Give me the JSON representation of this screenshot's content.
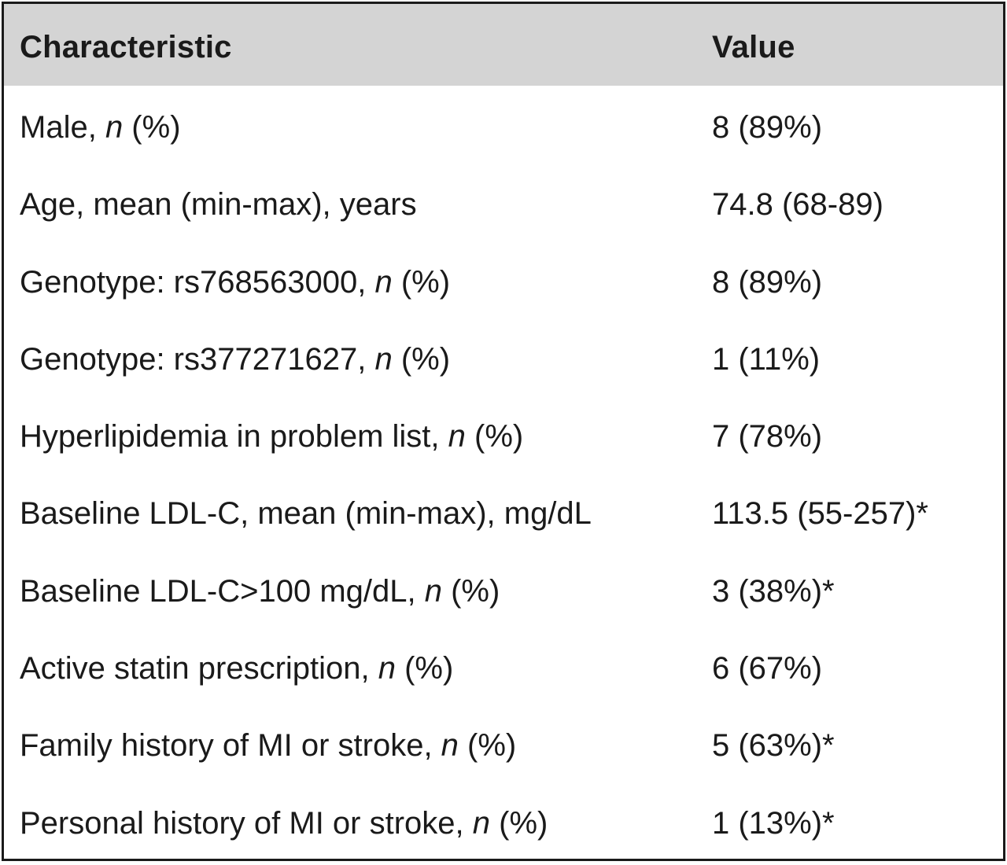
{
  "table": {
    "headers": {
      "characteristic": "Characteristic",
      "value": "Value"
    },
    "rows": [
      {
        "label_pre": "Male, ",
        "label_italic": "n",
        "label_post": " (%)",
        "value": "8 (89%)"
      },
      {
        "label_pre": "Age, mean (min-max), years",
        "label_italic": "",
        "label_post": "",
        "value": "74.8 (68-89)"
      },
      {
        "label_pre": "Genotype: rs768563000, ",
        "label_italic": "n",
        "label_post": " (%)",
        "value": "8 (89%)"
      },
      {
        "label_pre": "Genotype: rs377271627, ",
        "label_italic": "n",
        "label_post": " (%)",
        "value": "1 (11%)"
      },
      {
        "label_pre": "Hyperlipidemia in problem list, ",
        "label_italic": "n",
        "label_post": " (%)",
        "value": "7 (78%)"
      },
      {
        "label_pre": "Baseline LDL-C, mean (min-max), mg/dL",
        "label_italic": "",
        "label_post": "",
        "value": "113.5 (55-257)*"
      },
      {
        "label_pre": "Baseline LDL-C>100 mg/dL, ",
        "label_italic": "n",
        "label_post": " (%)",
        "value": "3 (38%)*"
      },
      {
        "label_pre": "Active statin prescription, ",
        "label_italic": "n",
        "label_post": " (%)",
        "value": "6 (67%)"
      },
      {
        "label_pre": "Family history of MI or stroke, ",
        "label_italic": "n",
        "label_post": " (%)",
        "value": "5 (63%)*"
      },
      {
        "label_pre": "Personal history of MI or stroke, ",
        "label_italic": "n",
        "label_post": " (%)",
        "value": "1 (13%)*"
      }
    ]
  }
}
